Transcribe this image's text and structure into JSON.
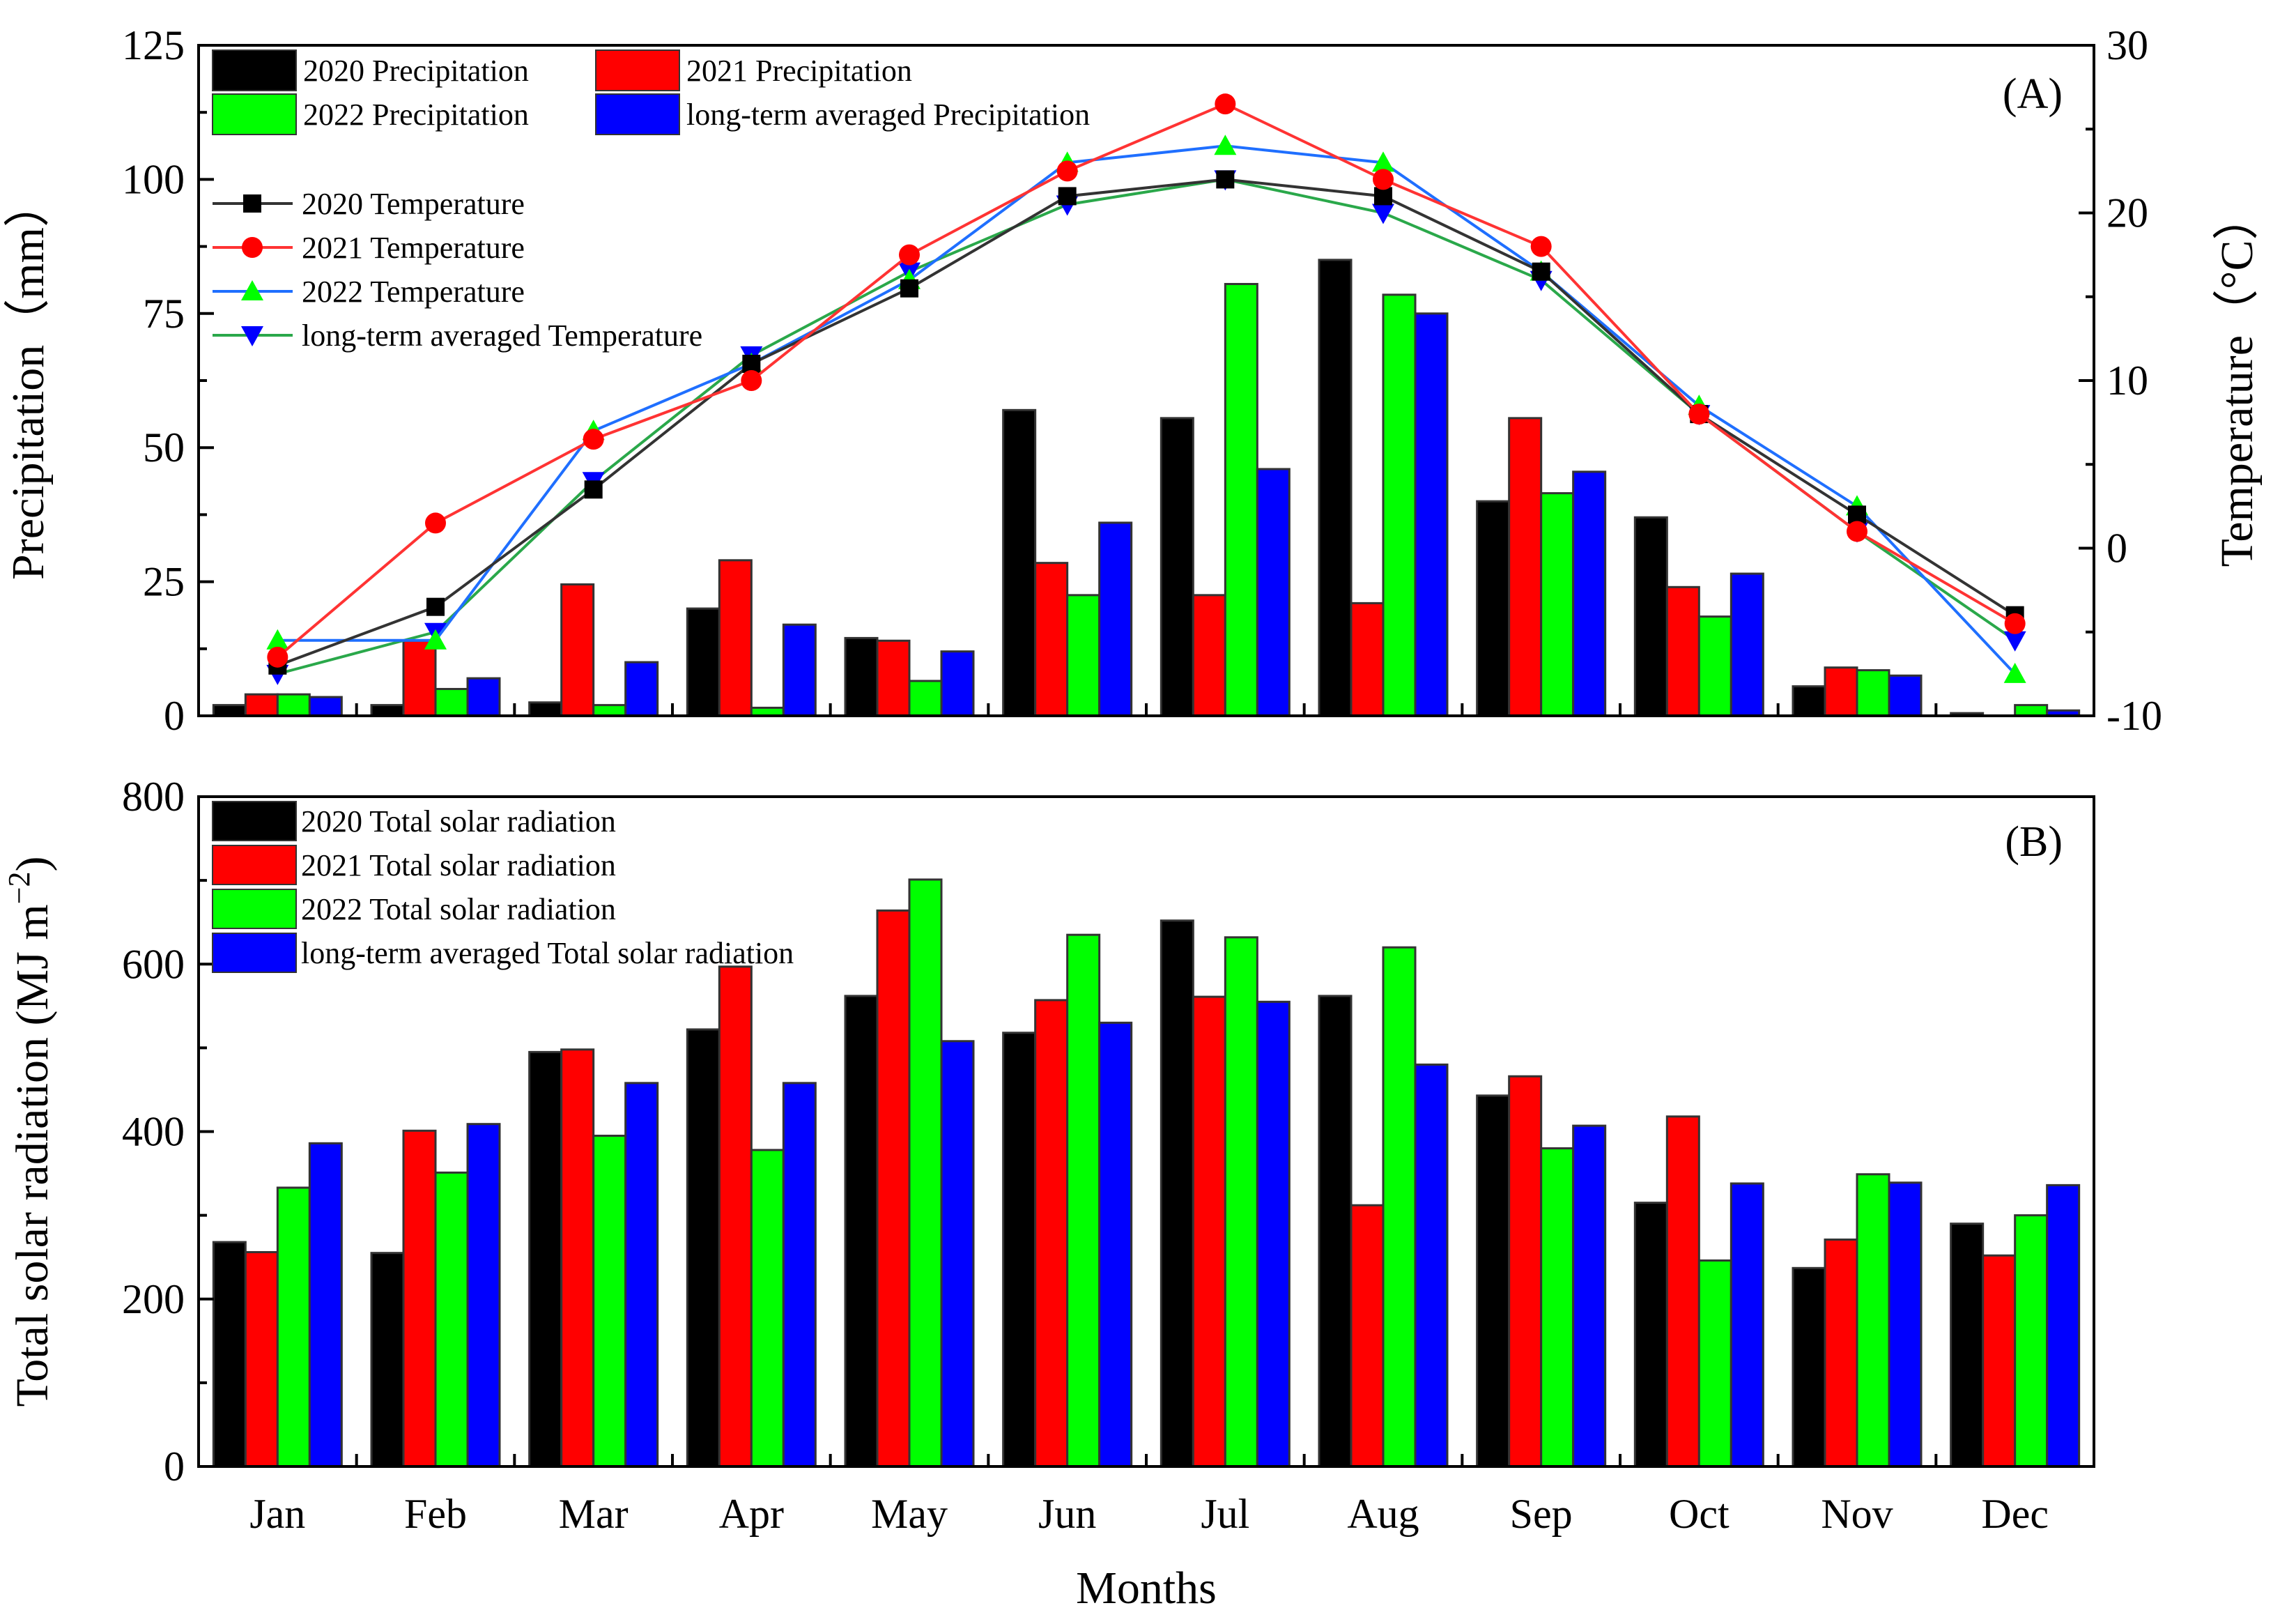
{
  "chart_data": [
    {
      "type": "bar",
      "panel_label": "(A)",
      "categories": [
        "Jan",
        "Feb",
        "Mar",
        "Apr",
        "May",
        "Jun",
        "Jul",
        "Aug",
        "Sep",
        "Oct",
        "Nov",
        "Dec"
      ],
      "ylabel": "Precipitation（mm）",
      "y2label": "Temperature（°C）",
      "ylim": [
        0,
        125
      ],
      "y_ticks": [
        "0",
        "25",
        "50",
        "75",
        "100",
        "125"
      ],
      "y2lim": [
        -10,
        30
      ],
      "y2_ticks": [
        "-10",
        "0",
        "10",
        "20",
        "30"
      ],
      "bar_series": [
        {
          "name": "2020   Precipitation",
          "color": "#000000",
          "values": [
            2,
            2,
            2.5,
            20,
            14.5,
            57,
            55.5,
            85,
            40,
            37,
            5.5,
            0.5
          ]
        },
        {
          "name": "2021  Precipitation",
          "color": "#ff0000",
          "values": [
            4,
            14,
            24.5,
            29,
            14,
            28.5,
            22.5,
            21,
            55.5,
            24,
            9,
            0
          ]
        },
        {
          "name": "2022   Precipitation",
          "color": "#00ff00",
          "values": [
            4,
            5,
            2,
            1.5,
            6.5,
            22.5,
            80.5,
            78.5,
            41.5,
            18.5,
            8.5,
            2
          ]
        },
        {
          "name": "long-term averaged  Precipitation",
          "color": "#0000ff",
          "values": [
            3.5,
            7,
            10,
            17,
            12,
            36,
            46,
            75,
            45.5,
            26.5,
            7.5,
            1
          ]
        }
      ],
      "line_series": [
        {
          "name": "2020   Temperature",
          "color": "#333333",
          "marker": "square",
          "values": [
            -7,
            -3.5,
            3.5,
            11,
            15.5,
            21,
            22,
            21,
            16.5,
            8,
            2,
            -4
          ]
        },
        {
          "name": "2021   Temperature",
          "color": "#ff3333",
          "marker": "circle",
          "values": [
            -6.5,
            1.5,
            6.5,
            10,
            17.5,
            22.5,
            26.5,
            22,
            18,
            8,
            1,
            -4.5
          ]
        },
        {
          "name": "2022   Temperature",
          "color": "#1f6fff",
          "marker": "triangle-up",
          "values": [
            -5.5,
            -5.5,
            7,
            11,
            16,
            23,
            24,
            23,
            16.5,
            8.5,
            2.5,
            -7.5
          ]
        },
        {
          "name": "long-term averaged   Temperature",
          "color": "#2aa84a",
          "marker": "triangle-down",
          "values": [
            -7.5,
            -5,
            4,
            11.5,
            16.5,
            20.5,
            22,
            20,
            16,
            8,
            1,
            -5.5
          ]
        }
      ]
    },
    {
      "type": "bar",
      "panel_label": "(B)",
      "categories": [
        "Jan",
        "Feb",
        "Mar",
        "Apr",
        "May",
        "Jun",
        "Jul",
        "Aug",
        "Sep",
        "Oct",
        "Nov",
        "Dec"
      ],
      "xlabel": "Months",
      "ylabel_main": "Total solar radiation (MJ m",
      "ylabel_sup": "−2",
      "ylabel_close": ")",
      "ylim": [
        0,
        800
      ],
      "y_ticks": [
        "0",
        "200",
        "400",
        "600",
        "800"
      ],
      "series": [
        {
          "name": "2020 Total solar radiation",
          "color": "#000000",
          "values": [
            268,
            255,
            495,
            522,
            562,
            518,
            652,
            562,
            443,
            315,
            237,
            290
          ]
        },
        {
          "name": "2021 Total solar radiation",
          "color": "#ff0000",
          "values": [
            256,
            401,
            498,
            597,
            664,
            557,
            561,
            312,
            466,
            418,
            271,
            252
          ]
        },
        {
          "name": "2022 Total solar radiation",
          "color": "#00ff00",
          "values": [
            333,
            351,
            395,
            378,
            701,
            635,
            632,
            620,
            380,
            246,
            349,
            300
          ]
        },
        {
          "name": "long-term averaged Total solar radiation",
          "color": "#0000ff",
          "values": [
            386,
            409,
            458,
            458,
            508,
            530,
            555,
            480,
            407,
            338,
            339,
            336
          ]
        }
      ]
    }
  ]
}
